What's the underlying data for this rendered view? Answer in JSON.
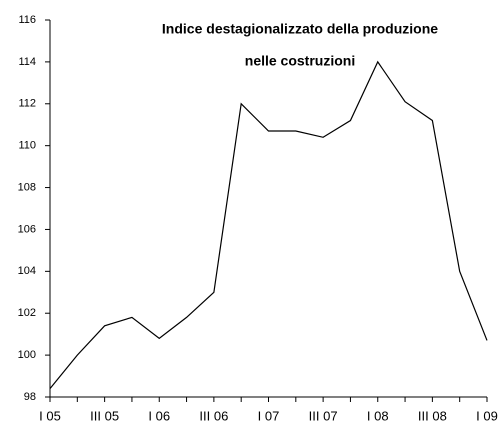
{
  "chart_data": {
    "type": "line",
    "title": [
      "Indice destagionalizzato della produzione",
      "nelle costruzioni"
    ],
    "categories": [
      "I 05",
      null,
      "III 05",
      null,
      "I 06",
      null,
      "III 06",
      null,
      "I 07",
      null,
      "III 07",
      null,
      "I 08",
      null,
      "III 08",
      null,
      "I 09"
    ],
    "values": [
      98.4,
      100.0,
      101.4,
      101.8,
      100.8,
      101.8,
      103.0,
      112.0,
      110.7,
      110.7,
      110.4,
      111.2,
      114.0,
      112.1,
      111.2,
      104.0,
      100.7
    ],
    "color": "#000000",
    "ylim": [
      98,
      116
    ],
    "yticks": [
      98,
      100,
      102,
      104,
      106,
      108,
      110,
      112,
      114,
      116
    ]
  }
}
